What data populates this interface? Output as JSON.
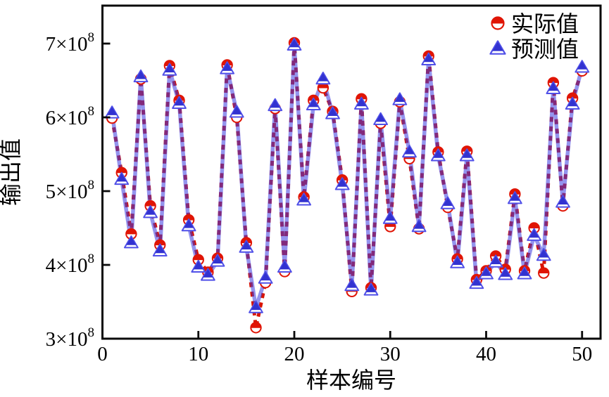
{
  "figure": {
    "background": "#ffffff",
    "frame_color": "#0a0a0a"
  },
  "chart_data": {
    "type": "line",
    "title": "",
    "xlabel": "样本编号",
    "ylabel": "输出值",
    "grid": false,
    "legend_position": "top-right",
    "value_unit": "1e8",
    "ylim_e8": [
      3.0,
      7.51
    ],
    "xlim": [
      0,
      52
    ],
    "xticks": [
      0,
      10,
      20,
      30,
      40,
      50
    ],
    "yticks": [
      {
        "base": "3×10",
        "exp": "8",
        "value_e8": 3
      },
      {
        "base": "4×10",
        "exp": "8",
        "value_e8": 4
      },
      {
        "base": "5×10",
        "exp": "8",
        "value_e8": 5
      },
      {
        "base": "6×10",
        "exp": "8",
        "value_e8": 6
      },
      {
        "base": "7×10",
        "exp": "8",
        "value_e8": 7
      }
    ],
    "x": [
      1,
      2,
      3,
      4,
      5,
      6,
      7,
      8,
      9,
      10,
      11,
      12,
      13,
      14,
      15,
      16,
      17,
      18,
      19,
      20,
      21,
      22,
      23,
      24,
      25,
      26,
      27,
      28,
      29,
      30,
      31,
      32,
      33,
      34,
      35,
      36,
      37,
      38,
      39,
      40,
      41,
      42,
      43,
      44,
      45,
      46,
      47,
      48,
      49,
      50
    ],
    "series": [
      {
        "name": "实际值",
        "marker": "circle-top-half-filled",
        "line_style": "dashed",
        "line_color": "#d81300",
        "marker_color": "#e01505",
        "values_e8": [
          5.99,
          5.25,
          4.42,
          6.52,
          4.8,
          4.27,
          6.7,
          6.23,
          4.61,
          4.07,
          3.9,
          4.09,
          6.71,
          6.0,
          4.3,
          3.15,
          3.76,
          6.12,
          3.91,
          7.01,
          4.92,
          6.23,
          6.4,
          6.08,
          5.15,
          3.64,
          6.25,
          3.69,
          5.92,
          4.52,
          6.21,
          5.44,
          4.49,
          6.83,
          5.53,
          4.78,
          4.08,
          5.54,
          3.8,
          3.92,
          4.12,
          3.94,
          4.96,
          3.92,
          4.5,
          3.89,
          6.47,
          4.8,
          6.26,
          6.63
        ]
      },
      {
        "name": "预测值",
        "marker": "triangle-top-half-filled",
        "line_style": "solid",
        "line_color": "#3c3ce0",
        "marker_color": "#3232d0",
        "values_e8": [
          6.06,
          5.16,
          4.3,
          6.55,
          4.71,
          4.19,
          6.64,
          6.19,
          4.53,
          3.97,
          3.86,
          4.05,
          6.66,
          6.07,
          4.24,
          3.42,
          3.82,
          6.16,
          3.97,
          6.98,
          4.88,
          6.17,
          6.52,
          6.05,
          5.09,
          3.72,
          6.18,
          3.66,
          5.97,
          4.63,
          6.24,
          5.53,
          4.52,
          6.78,
          5.48,
          4.83,
          4.03,
          5.48,
          3.75,
          3.88,
          4.04,
          3.87,
          4.9,
          3.88,
          4.4,
          4.13,
          6.39,
          4.85,
          6.18,
          6.68
        ]
      }
    ]
  },
  "legend": {
    "items": [
      {
        "label": "实际值",
        "icon": "half-filled-circle-icon"
      },
      {
        "label": "预测值",
        "icon": "half-filled-triangle-icon"
      }
    ]
  }
}
